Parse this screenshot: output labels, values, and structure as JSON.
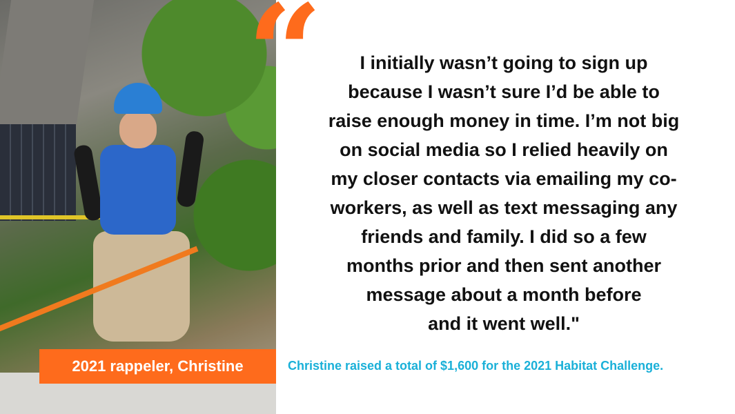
{
  "photo": {
    "description_label": "",
    "caption": "2021 rappeler, Christine"
  },
  "quote": {
    "mark": "“",
    "lines": [
      "I initially wasn’t going to sign up",
      "because I wasn’t sure I’d be able to",
      "raise enough money in time. I’m not big",
      "on social media so I relied heavily on",
      "my closer contacts via emailing my co-",
      "workers, as well as text messaging any",
      "friends and family. I did so a few",
      "months prior and then sent another",
      "message about a month before",
      "and it went well.\""
    ]
  },
  "total_text": "Christine raised a total of $1,600 for the 2021 Habitat Challenge.",
  "colors": {
    "accent_orange": "#fe6b1c",
    "accent_blue": "#1ab0d8",
    "text": "#111111"
  }
}
